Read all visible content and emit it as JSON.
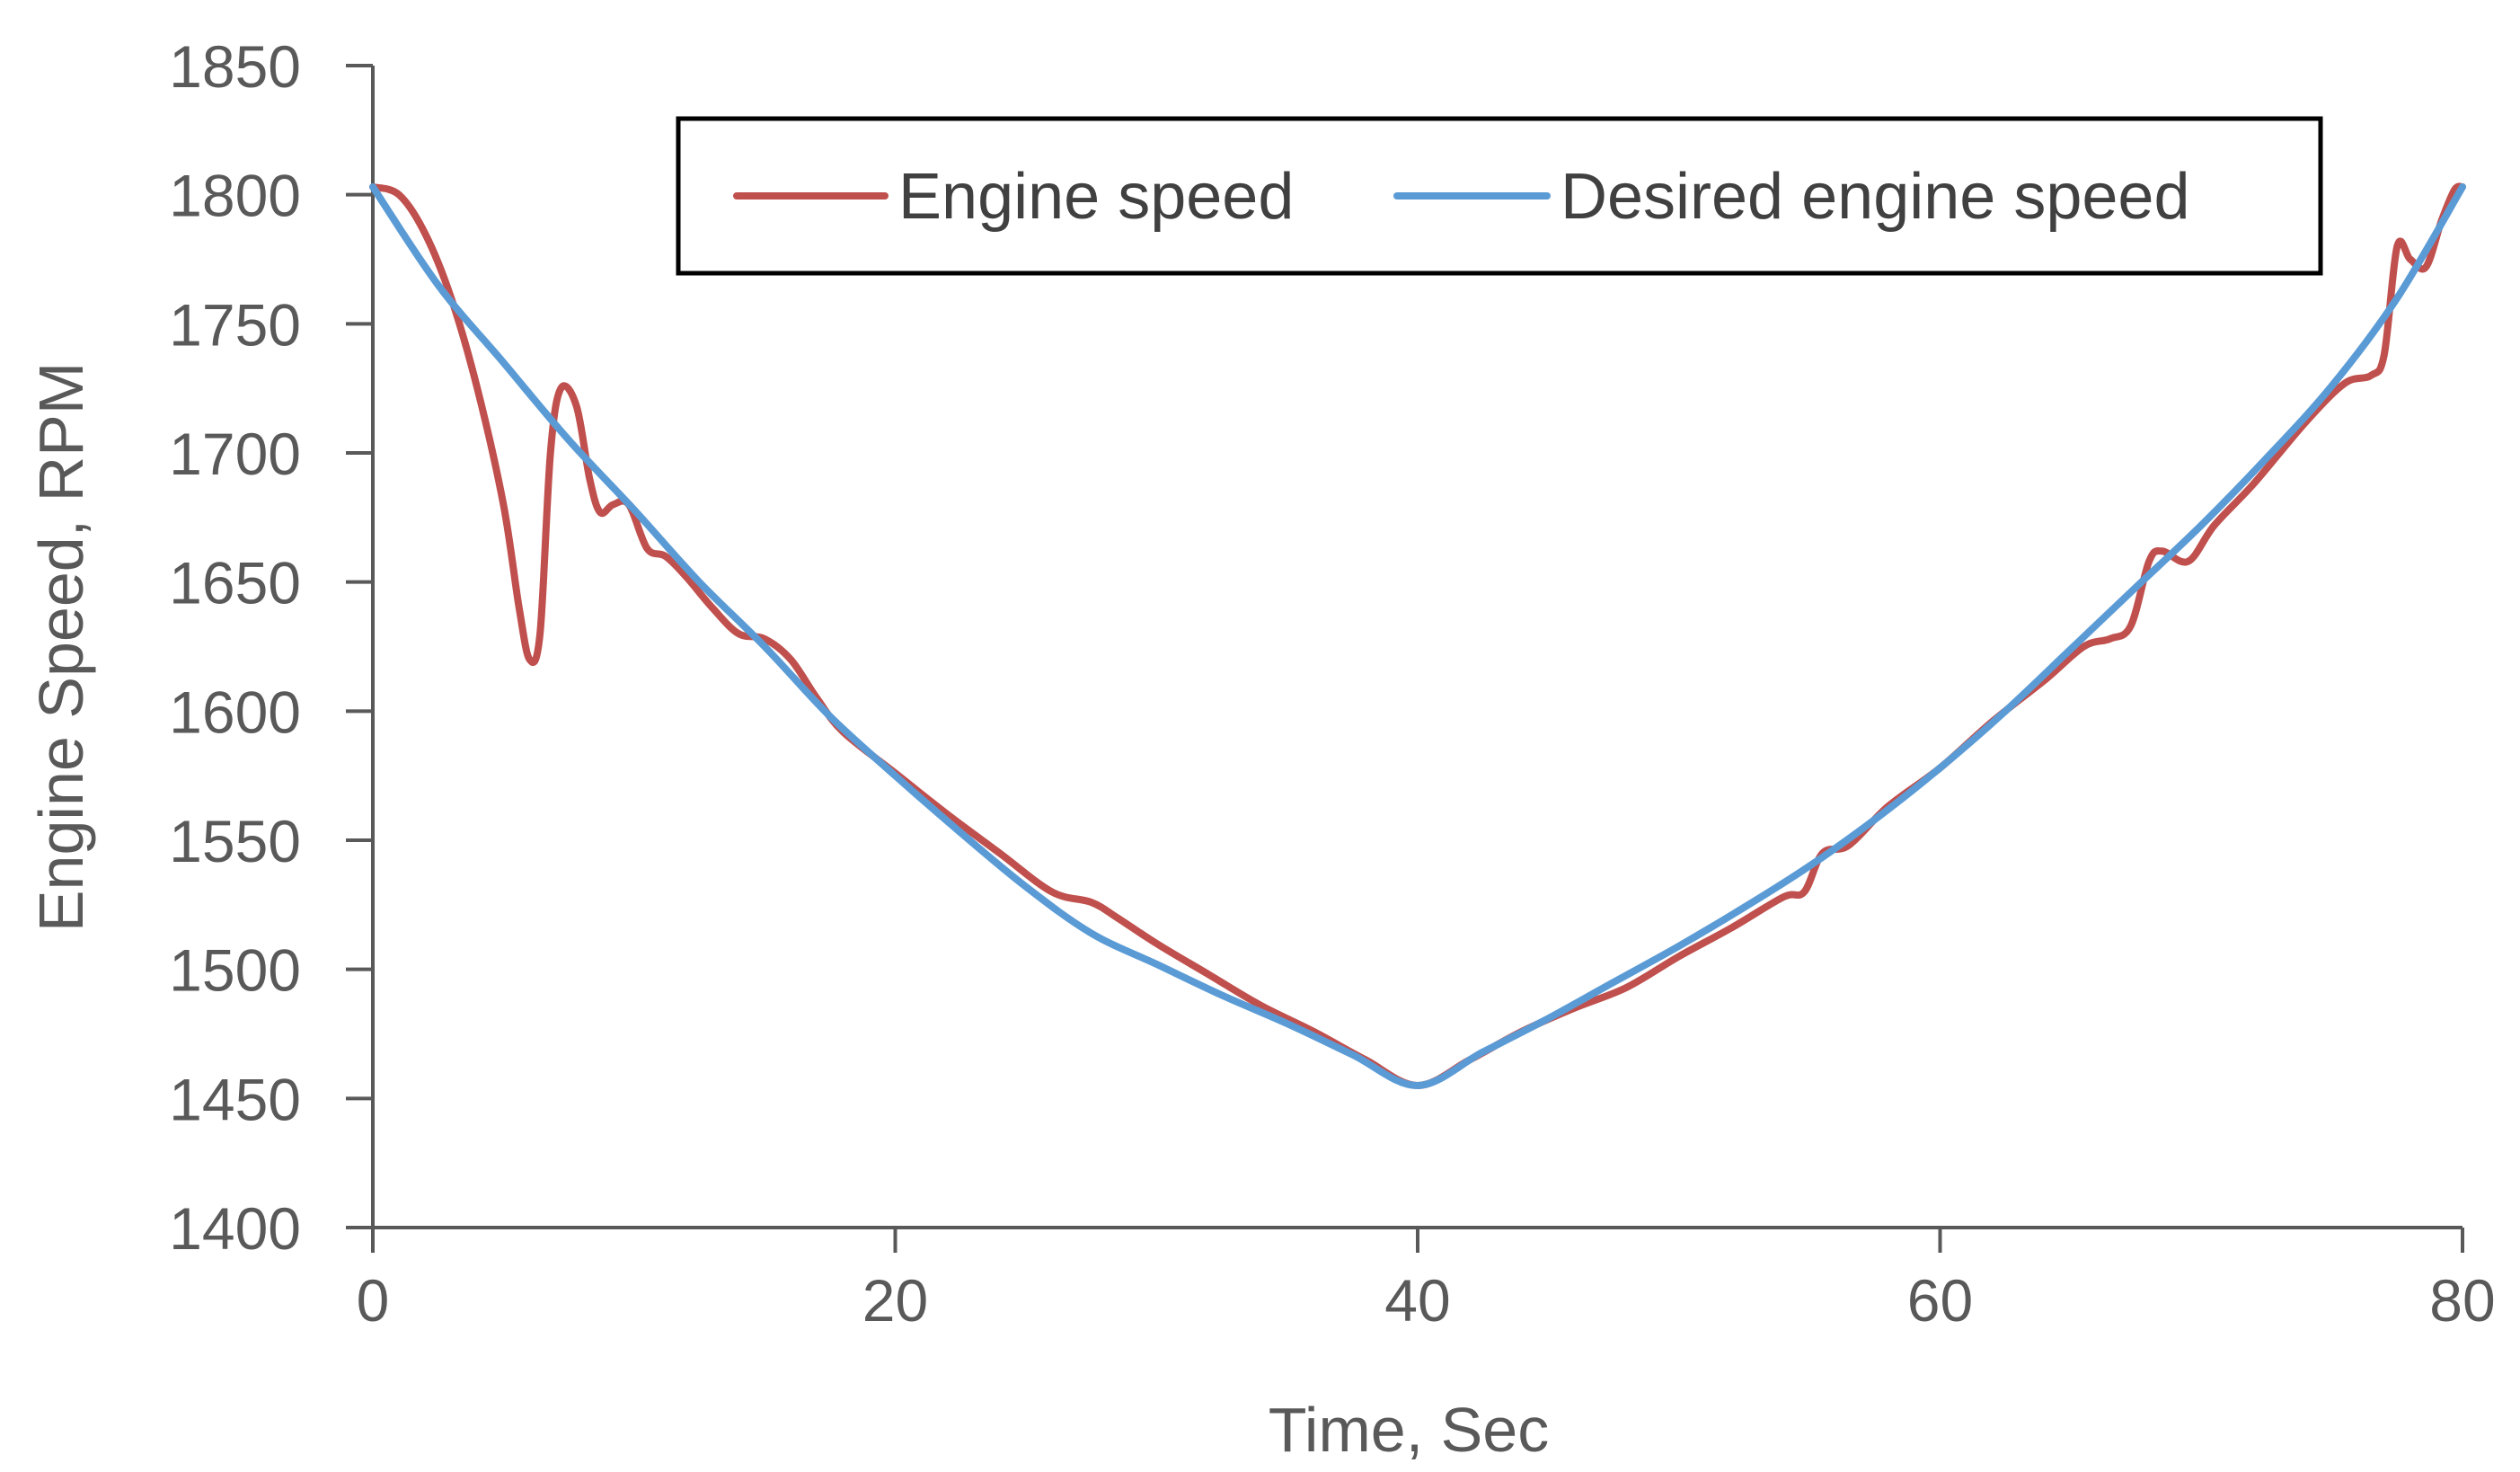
{
  "chart_data": {
    "type": "line",
    "title": "",
    "xlabel": "Time, Sec",
    "ylabel": "Engine Speed, RPM",
    "xlim": [
      0,
      80
    ],
    "ylim": [
      1400,
      1850
    ],
    "x_ticks": [
      0,
      20,
      40,
      60,
      80
    ],
    "y_ticks": [
      1400,
      1450,
      1500,
      1550,
      1600,
      1650,
      1700,
      1750,
      1800,
      1850
    ],
    "grid": false,
    "legend_position": "top-right",
    "series": [
      {
        "name": "Engine speed",
        "color": "#C0504D",
        "points": [
          [
            0,
            1803
          ],
          [
            1,
            1800
          ],
          [
            2,
            1785
          ],
          [
            3,
            1760
          ],
          [
            4,
            1725
          ],
          [
            5,
            1680
          ],
          [
            5.6,
            1640
          ],
          [
            6,
            1620
          ],
          [
            6.4,
            1630
          ],
          [
            6.8,
            1700
          ],
          [
            7.2,
            1725
          ],
          [
            7.8,
            1718
          ],
          [
            8.3,
            1690
          ],
          [
            8.7,
            1677
          ],
          [
            9.2,
            1680
          ],
          [
            9.8,
            1680
          ],
          [
            10.5,
            1663
          ],
          [
            11.2,
            1660
          ],
          [
            12,
            1652
          ],
          [
            13,
            1640
          ],
          [
            14,
            1630
          ],
          [
            15,
            1628
          ],
          [
            16,
            1620
          ],
          [
            17,
            1605
          ],
          [
            18,
            1592
          ],
          [
            20,
            1576
          ],
          [
            22,
            1560
          ],
          [
            24,
            1545
          ],
          [
            26,
            1530
          ],
          [
            27.5,
            1526
          ],
          [
            28.5,
            1520
          ],
          [
            30,
            1510
          ],
          [
            32,
            1498
          ],
          [
            34,
            1486
          ],
          [
            36,
            1476
          ],
          [
            38,
            1465
          ],
          [
            40,
            1455
          ],
          [
            42,
            1465
          ],
          [
            44,
            1476
          ],
          [
            46,
            1485
          ],
          [
            48,
            1493
          ],
          [
            50,
            1505
          ],
          [
            52,
            1516
          ],
          [
            54,
            1528
          ],
          [
            54.8,
            1530
          ],
          [
            55.5,
            1545
          ],
          [
            56.5,
            1548
          ],
          [
            58,
            1563
          ],
          [
            60,
            1578
          ],
          [
            62,
            1596
          ],
          [
            64,
            1612
          ],
          [
            65.5,
            1625
          ],
          [
            66.5,
            1628
          ],
          [
            67.3,
            1633
          ],
          [
            68,
            1658
          ],
          [
            68.5,
            1662
          ],
          [
            69.5,
            1658
          ],
          [
            70.5,
            1672
          ],
          [
            72,
            1688
          ],
          [
            74,
            1712
          ],
          [
            75.5,
            1727
          ],
          [
            76.5,
            1730
          ],
          [
            77,
            1738
          ],
          [
            77.5,
            1780
          ],
          [
            78,
            1775
          ],
          [
            78.6,
            1772
          ],
          [
            79.2,
            1790
          ],
          [
            79.7,
            1802
          ],
          [
            80,
            1803
          ]
        ]
      },
      {
        "name": "Desired engine speed",
        "color": "#5B9BD5",
        "points": [
          [
            0,
            1803
          ],
          [
            2.5,
            1765
          ],
          [
            5,
            1735
          ],
          [
            7.5,
            1705
          ],
          [
            10,
            1678
          ],
          [
            12.5,
            1650
          ],
          [
            15,
            1625
          ],
          [
            17.5,
            1598
          ],
          [
            20,
            1575
          ],
          [
            22.5,
            1553
          ],
          [
            25,
            1532
          ],
          [
            27.5,
            1514
          ],
          [
            30,
            1502
          ],
          [
            32.5,
            1490
          ],
          [
            35,
            1479
          ],
          [
            37.5,
            1467
          ],
          [
            40,
            1455
          ],
          [
            42.5,
            1468
          ],
          [
            45,
            1481
          ],
          [
            47.5,
            1495
          ],
          [
            50,
            1509
          ],
          [
            52.5,
            1524
          ],
          [
            55,
            1540
          ],
          [
            57.5,
            1558
          ],
          [
            60,
            1578
          ],
          [
            62.5,
            1600
          ],
          [
            65,
            1624
          ],
          [
            67.5,
            1648
          ],
          [
            70,
            1672
          ],
          [
            72.5,
            1698
          ],
          [
            75,
            1726
          ],
          [
            77.5,
            1760
          ],
          [
            80,
            1803
          ]
        ]
      }
    ]
  }
}
